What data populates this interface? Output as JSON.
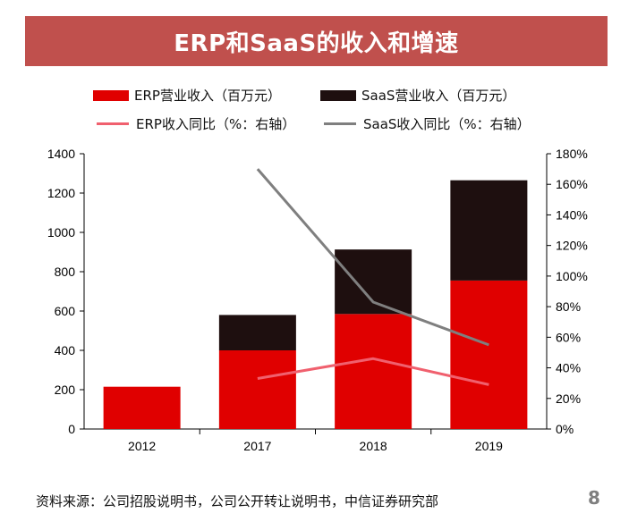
{
  "header": {
    "title": "ERP和SaaS的收入和增速"
  },
  "legend": {
    "erp_revenue": "ERP营业收入（百万元）",
    "saas_revenue": "SaaS营业收入（百万元）",
    "erp_growth": "ERP收入同比（%：右轴）",
    "saas_growth": "SaaS收入同比（%：右轴）"
  },
  "footer": {
    "source": "资料来源：公司招股说明书，公司公开转让说明书，中信证券研究部",
    "page_number": "8"
  },
  "colors": {
    "title_bg": "#c0504d",
    "erp_bar": "#e00000",
    "saas_bar": "#1e0f0f",
    "erp_line": "#f0606e",
    "saas_line": "#7f7f7f"
  },
  "chart_data": {
    "type": "bar",
    "stacked": true,
    "categories": [
      "2012",
      "2017",
      "2018",
      "2019"
    ],
    "series": [
      {
        "name": "ERP营业收入（百万元）",
        "values": [
          215,
          400,
          585,
          755
        ]
      },
      {
        "name": "SaaS营业收入（百万元）",
        "values": [
          0,
          180,
          328,
          510
        ]
      }
    ],
    "line_series": [
      {
        "name": "ERP收入同比（%：右轴）",
        "axis": "right",
        "values": [
          null,
          33,
          46,
          29
        ]
      },
      {
        "name": "SaaS收入同比（%：右轴）",
        "axis": "right",
        "values": [
          null,
          170,
          83,
          55
        ]
      }
    ],
    "ylim": [
      0,
      1400
    ],
    "yticks": [
      "0",
      "200",
      "400",
      "600",
      "800",
      "1000",
      "1200",
      "1400"
    ],
    "y2lim": [
      0,
      180
    ],
    "y2ticks": [
      "0%",
      "20%",
      "40%",
      "60%",
      "80%",
      "100%",
      "120%",
      "140%",
      "160%",
      "180%"
    ],
    "legend_position": "top"
  }
}
